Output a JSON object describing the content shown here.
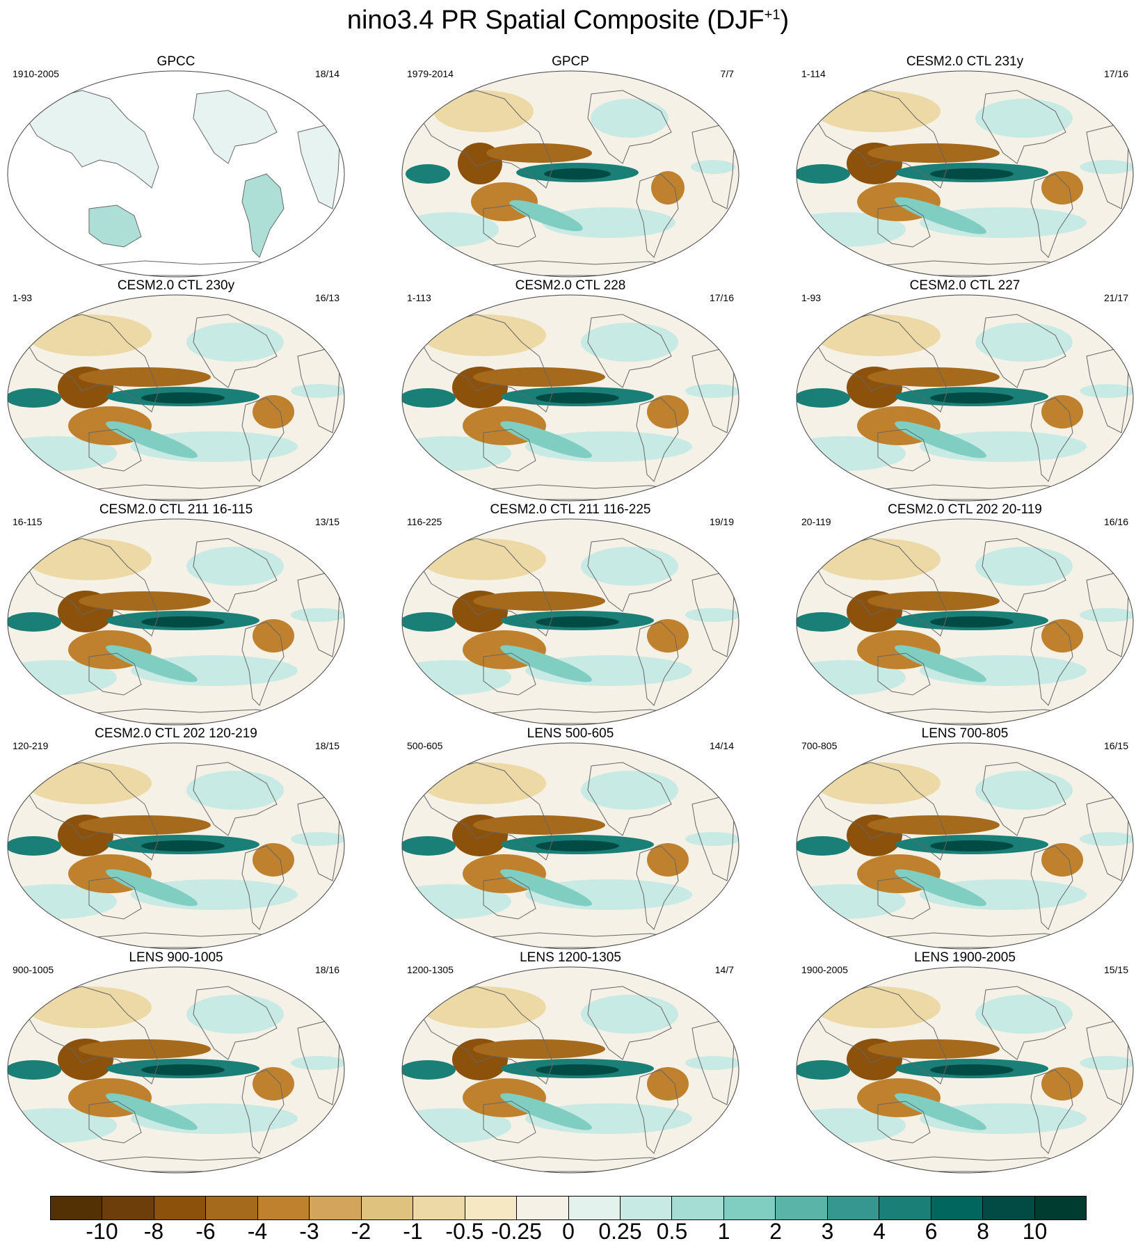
{
  "title": "nino3.4 PR Spatial Composite (DJF",
  "title_sup": "+1",
  "title_close": ")",
  "panels": [
    {
      "title": "GPCC",
      "left": "1910-2005",
      "right": "18/14",
      "mask": "land"
    },
    {
      "title": "GPCP",
      "left": "1979-2014",
      "right": "7/7",
      "mask": "none"
    },
    {
      "title": "CESM2.0 CTL 231y",
      "left": "1-114",
      "right": "17/16",
      "mask": "none"
    },
    {
      "title": "CESM2.0 CTL 230y",
      "left": "1-93",
      "right": "16/13",
      "mask": "none"
    },
    {
      "title": "CESM2.0 CTL 228",
      "left": "1-113",
      "right": "17/16",
      "mask": "none"
    },
    {
      "title": "CESM2.0 CTL 227",
      "left": "1-93",
      "right": "21/17",
      "mask": "none"
    },
    {
      "title": "CESM2.0 CTL 211 16-115",
      "left": "16-115",
      "right": "13/15",
      "mask": "none"
    },
    {
      "title": "CESM2.0 CTL 211 116-225",
      "left": "116-225",
      "right": "19/19",
      "mask": "none"
    },
    {
      "title": "CESM2.0 CTL 202 20-119",
      "left": "20-119",
      "right": "16/16",
      "mask": "none"
    },
    {
      "title": "CESM2.0 CTL 202 120-219",
      "left": "120-219",
      "right": "18/15",
      "mask": "none"
    },
    {
      "title": "LENS 500-605",
      "left": "500-605",
      "right": "14/14",
      "mask": "none"
    },
    {
      "title": "LENS 700-805",
      "left": "700-805",
      "right": "16/15",
      "mask": "none"
    },
    {
      "title": "LENS 900-1005",
      "left": "900-1005",
      "right": "18/16",
      "mask": "none"
    },
    {
      "title": "LENS 1200-1305",
      "left": "1200-1305",
      "right": "14/7",
      "mask": "none"
    },
    {
      "title": "LENS 1900-2005",
      "left": "1900-2005",
      "right": "15/15",
      "mask": "none"
    }
  ],
  "colorbar": {
    "labels": [
      "-10",
      "-8",
      "-6",
      "-4",
      "-3",
      "-2",
      "-1",
      "-0.5",
      "-0.25",
      "0",
      "0.25",
      "0.5",
      "1",
      "2",
      "3",
      "4",
      "6",
      "8",
      "10"
    ],
    "colors": [
      "#543005",
      "#6e3e0a",
      "#8c510a",
      "#a66a1c",
      "#bf812d",
      "#d3a55c",
      "#dfc27d",
      "#ecd9a6",
      "#f6e8c3",
      "#f6f1e6",
      "#e4f2ee",
      "#c7eae5",
      "#a5dcd3",
      "#80cdc1",
      "#5ab4a8",
      "#35978f",
      "#1a7f77",
      "#01665e",
      "#024a44",
      "#003c30"
    ]
  }
}
